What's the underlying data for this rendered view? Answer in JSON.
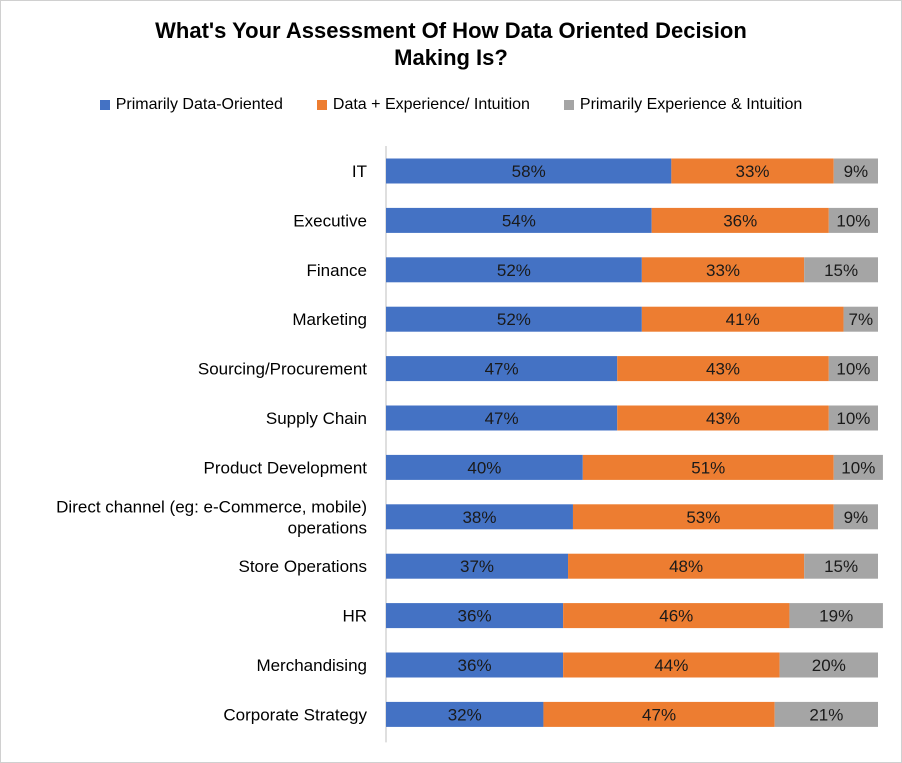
{
  "chart_data": {
    "type": "bar",
    "orientation": "horizontal",
    "stacked": true,
    "title": "What's Your Assessment Of How Data Oriented Decision Making Is?",
    "title_lines": [
      "What's Your Assessment Of How Data Oriented Decision",
      "Making Is?"
    ],
    "legend_position": "top",
    "grid": false,
    "xlim": [
      0,
      100
    ],
    "categories": [
      "IT",
      "Executive",
      "Finance",
      "Marketing",
      "Sourcing/Procurement",
      "Supply Chain",
      "Product Development",
      "Direct channel (eg: e-Commerce, mobile) operations",
      "Store Operations",
      "HR",
      "Merchandising",
      "Corporate Strategy"
    ],
    "category_lines": [
      [
        "IT"
      ],
      [
        "Executive"
      ],
      [
        "Finance"
      ],
      [
        "Marketing"
      ],
      [
        "Sourcing/Procurement"
      ],
      [
        "Supply Chain"
      ],
      [
        "Product Development"
      ],
      [
        "Direct channel (eg: e-Commerce, mobile)",
        "operations"
      ],
      [
        "Store Operations"
      ],
      [
        "HR"
      ],
      [
        "Merchandising"
      ],
      [
        "Corporate Strategy"
      ]
    ],
    "series": [
      {
        "name": "Primarily Data-Oriented",
        "color": "#4472c4",
        "values": [
          58,
          54,
          52,
          52,
          47,
          47,
          40,
          38,
          37,
          36,
          36,
          32
        ]
      },
      {
        "name": "Data + Experience/ Intuition",
        "color": "#ed7d31",
        "values": [
          33,
          36,
          33,
          41,
          43,
          43,
          51,
          53,
          48,
          46,
          44,
          47
        ]
      },
      {
        "name": "Primarily Experience & Intuition",
        "color": "#a5a5a5",
        "values": [
          9,
          10,
          15,
          7,
          10,
          10,
          10,
          9,
          15,
          19,
          20,
          21
        ]
      }
    ],
    "value_suffix": "%"
  }
}
